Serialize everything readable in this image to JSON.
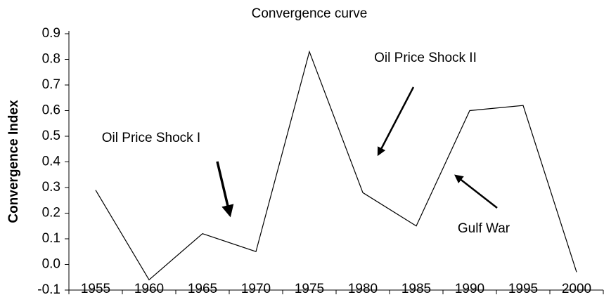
{
  "chart_data": {
    "type": "line",
    "title": "Convergence curve",
    "y_label": "Convergence Index",
    "categories": [
      "1955",
      "1960",
      "1965",
      "1970",
      "1975",
      "1980",
      "1985",
      "1990",
      "1995",
      "2000"
    ],
    "values": [
      0.29,
      -0.06,
      0.12,
      0.05,
      0.83,
      0.28,
      0.15,
      0.6,
      0.62,
      -0.03
    ],
    "color": "#000000",
    "ylim": [
      -0.1,
      0.9
    ],
    "yticks": [
      -0.1,
      {
        "value": 0,
        "label": "0.0"
      },
      0.1,
      0.2,
      0.3,
      0.4,
      0.5,
      0.6,
      0.7,
      0.8,
      0.9
    ],
    "annotations": [
      "Oil Price Shock I",
      "Oil Price Shock II",
      "Gulf War"
    ]
  }
}
